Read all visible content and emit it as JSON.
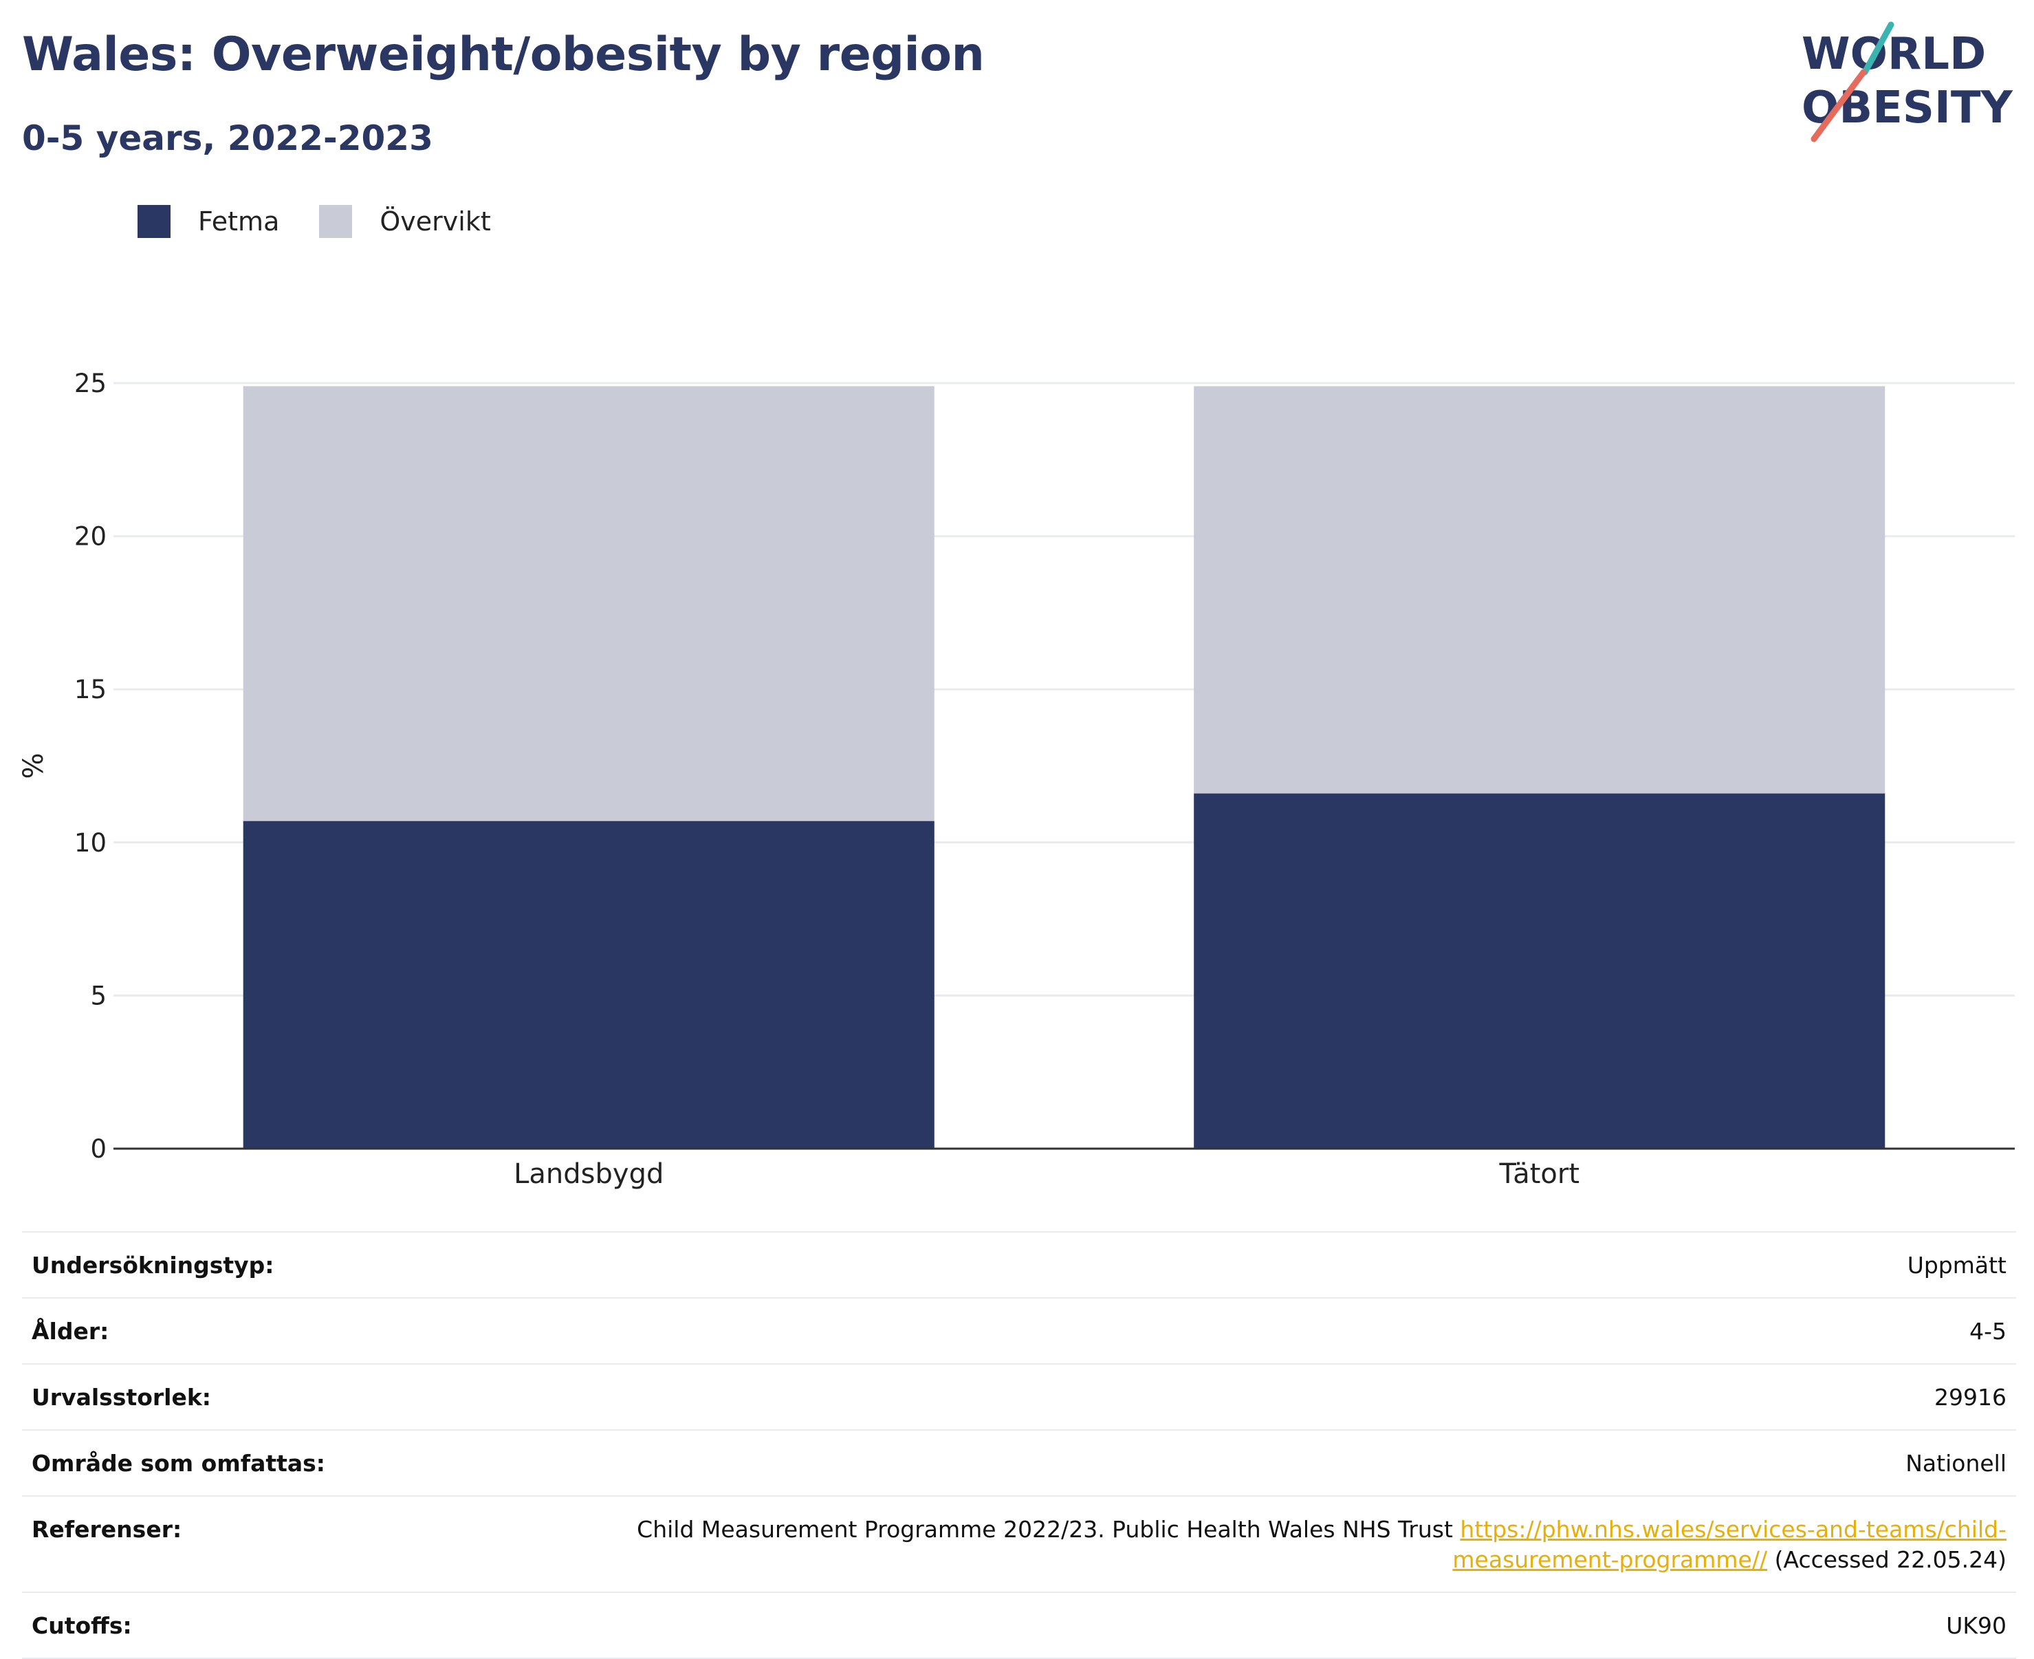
{
  "header": {
    "title": "Wales: Overweight/obesity by region",
    "subtitle": "0-5 years, 2022-2023",
    "logo_line1": "WORLD",
    "logo_line2": "OBESITY"
  },
  "colors": {
    "obesity": "#2b3763",
    "overweight": "#c9ccd7",
    "link": "#e8ae0c",
    "title": "#2b3763",
    "logo_teal": "#3bb3b0",
    "logo_coral": "#e56b5d"
  },
  "chart_data": {
    "type": "bar",
    "stacked": true,
    "categories": [
      "Landsbygd",
      "Tätort"
    ],
    "series": [
      {
        "name": "Fetma",
        "values": [
          10.7,
          11.6
        ]
      },
      {
        "name": "Övervikt",
        "values": [
          14.2,
          13.3
        ]
      }
    ],
    "ylabel": "%",
    "ylim": [
      0,
      25
    ],
    "yticks": [
      0,
      5,
      10,
      15,
      20,
      25
    ],
    "grid": true,
    "legend": "top-left"
  },
  "meta": [
    {
      "key": "Undersökningstyp:",
      "value": "Uppmätt"
    },
    {
      "key": "Ålder:",
      "value": "4-5"
    },
    {
      "key": "Urvalsstorlek:",
      "value": "29916"
    },
    {
      "key": "Område som omfattas:",
      "value": "Nationell"
    },
    {
      "key": "Referenser:",
      "value": "Child Measurement Programme 2022/23. Public Health Wales NHS Trust ",
      "link": "https://phw.nhs.wales/services-and-teams/child-measurement-programme//",
      "suffix": " (Accessed 22.05.24)"
    },
    {
      "key": "Cutoffs:",
      "value": "UK90"
    }
  ]
}
